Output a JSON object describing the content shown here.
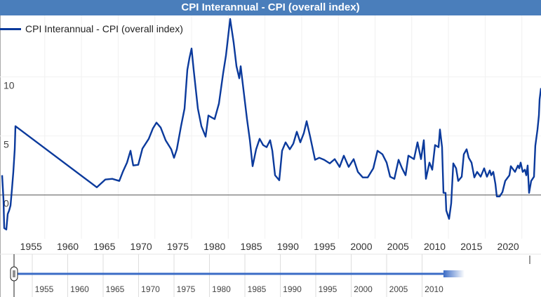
{
  "title": "CPI Interannual - CPI (overall index)",
  "colors": {
    "title_bar": "#4a7ebb",
    "series": "#0b3a9c",
    "navigator_line": "#3b6cc6",
    "zero_line": "#555555"
  },
  "chart_data": {
    "type": "line",
    "title": "CPI Interannual - CPI (overall index)",
    "xlabel": "",
    "ylabel": "",
    "legend_position": "top-left",
    "grid": true,
    "xlim": [
      1949,
      2023
    ],
    "ylim": [
      -3.7,
      15.2
    ],
    "y_ticks": [
      0,
      5,
      10
    ],
    "x_ticks": [
      1955,
      1960,
      1965,
      1970,
      1975,
      1980,
      1985,
      1990,
      1995,
      2000,
      2005,
      2010,
      2015,
      2020
    ],
    "series": [
      {
        "name": "CPI Interannual - CPI (overall index)",
        "x": [
          1949.19,
          1949.38,
          1949.47,
          1949.76,
          1949.95,
          1950.14,
          1950.33,
          1950.53,
          1950.72,
          1950.91,
          1951.0,
          1962.09,
          1963.24,
          1964.2,
          1965.15,
          1965.63,
          1966.2,
          1966.68,
          1967.06,
          1967.73,
          1968.31,
          1969.17,
          1969.74,
          1970.22,
          1970.79,
          1971.46,
          1972.23,
          1972.61,
          1972.99,
          1973.57,
          1974.04,
          1974.43,
          1974.71,
          1975.0,
          1975.29,
          1975.86,
          1976.34,
          1976.91,
          1977.29,
          1977.77,
          1978.15,
          1978.73,
          1979.3,
          1979.68,
          1980.26,
          1980.74,
          1981.12,
          1981.5,
          1981.69,
          1981.98,
          1982.55,
          1982.94,
          1983.32,
          1983.8,
          1984.27,
          1984.75,
          1985.23,
          1985.71,
          1986.0,
          1986.38,
          1986.95,
          1987.33,
          1987.81,
          1988.38,
          1988.86,
          1989.34,
          1989.82,
          1990.3,
          1990.68,
          1991.16,
          1991.83,
          1992.4,
          1993.07,
          1993.83,
          1994.5,
          1995.17,
          1995.75,
          1996.41,
          1997.08,
          1997.66,
          1998.33,
          1999.0,
          1999.76,
          2000.33,
          2001.0,
          2001.58,
          2002.06,
          2002.63,
          2003.2,
          2003.68,
          2004.16,
          2004.54,
          2005.31,
          2005.78,
          2006.26,
          2006.64,
          2006.93,
          2007.41,
          2007.79,
          2008.17,
          2008.65,
          2008.84,
          2009.13,
          2009.32,
          2009.61,
          2009.7,
          2010.09,
          2010.37,
          2010.66,
          2011.04,
          2011.33,
          2011.81,
          2012.09,
          2012.48,
          2012.76,
          2013.15,
          2013.53,
          2013.91,
          2014.39,
          2014.87,
          2015.25,
          2015.63,
          2015.82,
          2016.11,
          2016.4,
          2016.59,
          2016.97,
          2017.35,
          2017.73,
          2018.31,
          2018.5,
          2019.07,
          2019.46,
          2019.65,
          2019.84,
          2020.12,
          2020.41,
          2020.6,
          2020.79,
          2020.98,
          2021.27,
          2021.46,
          2021.65,
          2021.84,
          2022.13,
          2022.32,
          2022.42,
          2022.61
        ],
        "values": [
          1.67,
          -0.42,
          -2.8,
          -2.92,
          -1.61,
          -1.31,
          -0.89,
          0.48,
          1.96,
          3.87,
          5.83,
          0.65,
          1.31,
          1.37,
          1.19,
          1.96,
          2.74,
          3.75,
          2.5,
          2.56,
          3.93,
          4.76,
          5.65,
          6.13,
          5.71,
          4.64,
          3.87,
          3.15,
          3.87,
          5.83,
          7.32,
          10.6,
          11.6,
          12.4,
          10.6,
          7.32,
          5.83,
          4.94,
          6.73,
          6.55,
          6.43,
          7.74,
          10.3,
          11.8,
          14.9,
          12.9,
          10.9,
          9.88,
          10.9,
          9.4,
          6.43,
          4.64,
          2.44,
          3.87,
          4.76,
          4.23,
          4.05,
          4.64,
          3.75,
          1.67,
          1.25,
          3.75,
          4.46,
          3.87,
          4.35,
          5.36,
          4.46,
          5.24,
          6.25,
          4.94,
          2.98,
          3.15,
          2.98,
          2.68,
          3.04,
          2.38,
          3.33,
          2.38,
          3.04,
          1.96,
          1.49,
          1.49,
          2.26,
          3.75,
          3.45,
          2.74,
          1.55,
          1.37,
          2.98,
          2.26,
          1.67,
          3.33,
          3.04,
          4.46,
          3.04,
          4.64,
          1.37,
          2.74,
          2.14,
          4.23,
          4.05,
          5.54,
          4.05,
          0.18,
          0.18,
          -1.31,
          -2.02,
          -0.71,
          2.68,
          2.26,
          1.19,
          1.55,
          3.45,
          3.87,
          3.15,
          2.74,
          1.49,
          1.96,
          1.55,
          2.26,
          1.55,
          2.08,
          1.67,
          1.96,
          0.95,
          -0.12,
          -0.12,
          0.24,
          1.19,
          1.67,
          2.44,
          1.96,
          2.5,
          2.26,
          2.74,
          1.96,
          2.14,
          1.67,
          2.5,
          0.18,
          1.19,
          1.37,
          1.55,
          4.17,
          5.54,
          6.73,
          8.1,
          9.05
        ]
      }
    ]
  },
  "navigator": {
    "x_ticks": [
      1955,
      1960,
      1965,
      1970,
      1975,
      1980,
      1985,
      1990,
      1995,
      2000,
      2005,
      2010
    ],
    "handle_icon": "drag-handle-icon"
  }
}
